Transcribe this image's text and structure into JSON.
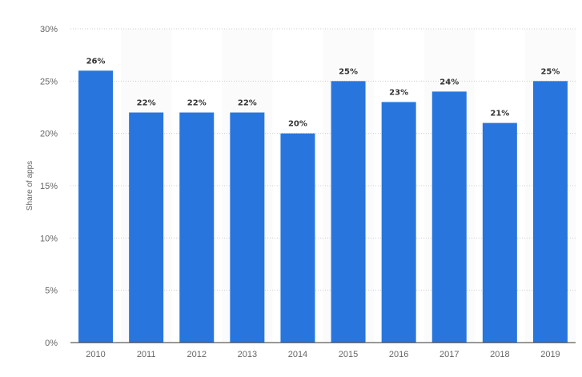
{
  "chart_data": {
    "type": "bar",
    "categories": [
      "2010",
      "2011",
      "2012",
      "2013",
      "2014",
      "2015",
      "2016",
      "2017",
      "2018",
      "2019"
    ],
    "values": [
      26,
      22,
      22,
      22,
      20,
      25,
      23,
      24,
      21,
      25
    ],
    "data_labels": [
      "26%",
      "22%",
      "22%",
      "22%",
      "20%",
      "25%",
      "23%",
      "24%",
      "21%",
      "25%"
    ],
    "ylabel": "Share of apps",
    "ylim": [
      0,
      30
    ],
    "yticks": [
      0,
      5,
      10,
      15,
      20,
      25,
      30
    ],
    "ytick_labels": [
      "0%",
      "5%",
      "10%",
      "15%",
      "20%",
      "25%",
      "30%"
    ],
    "grid": true,
    "legend": "none",
    "bar_color": "#2876dd",
    "band_color": "#fbfbfb"
  }
}
